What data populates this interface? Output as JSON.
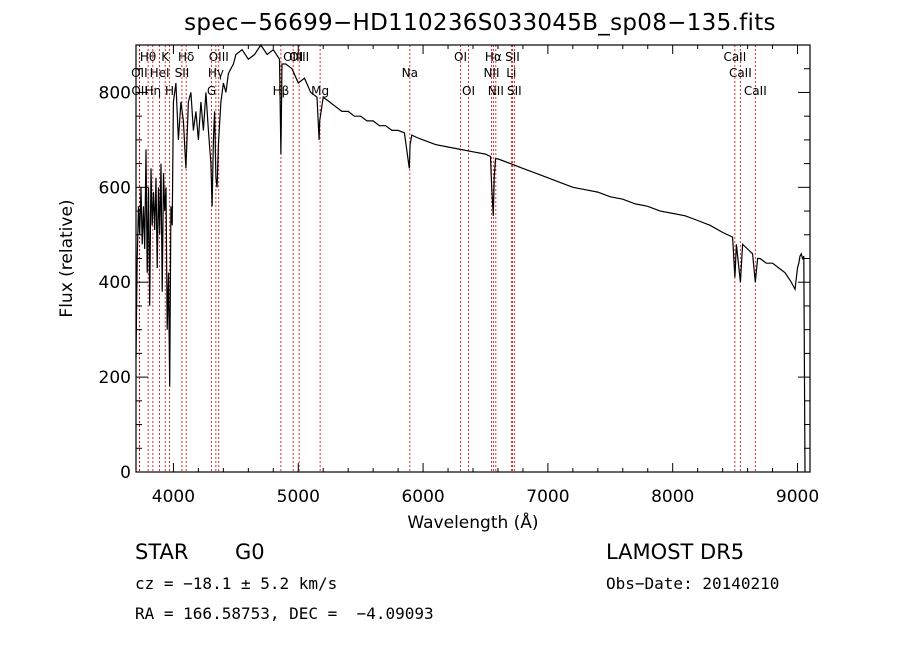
{
  "title": "spec−56699−HD110236S033045B_sp08−135.fits",
  "info": {
    "class_label": "STAR",
    "subclass": "G0",
    "cz": "cz = −18.1 ± 5.2 km/s",
    "radec": "RA = 166.58753, DEC =  −4.09093",
    "survey": "LAMOST DR5",
    "obs_date": "Obs−Date: 20140210"
  },
  "chart_data": {
    "type": "line",
    "title": "spec−56699−HD110236S033045B_sp08−135.fits",
    "xlabel": "Wavelength (Å)",
    "ylabel": "Flux (relative)",
    "xlim": [
      3700,
      9100
    ],
    "ylim": [
      0,
      900
    ],
    "xticks": [
      4000,
      5000,
      6000,
      7000,
      8000,
      9000
    ],
    "yticks": [
      0,
      200,
      400,
      600,
      800
    ],
    "grid": false,
    "line_color": "#000000",
    "marker_color": "#cc0000",
    "series": [
      {
        "x": [
          3700,
          3710,
          3720,
          3730,
          3740,
          3750,
          3760,
          3770,
          3780,
          3790,
          3800,
          3810,
          3820,
          3830,
          3840,
          3850,
          3860,
          3870,
          3880,
          3890,
          3900,
          3910,
          3920,
          3930,
          3940,
          3950,
          3960,
          3970,
          3980,
          3990,
          4000,
          4020,
          4040,
          4060,
          4080,
          4100,
          4120,
          4140,
          4160,
          4180,
          4200,
          4220,
          4240,
          4260,
          4280,
          4300,
          4310,
          4320,
          4330,
          4340,
          4350,
          4360,
          4380,
          4400,
          4420,
          4440,
          4460,
          4480,
          4500,
          4550,
          4600,
          4650,
          4700,
          4750,
          4800,
          4850,
          4861,
          4870,
          4900,
          4950,
          5000,
          5050,
          5100,
          5150,
          5167,
          5172,
          5183,
          5200,
          5250,
          5300,
          5350,
          5400,
          5450,
          5500,
          5550,
          5600,
          5650,
          5700,
          5750,
          5800,
          5850,
          5890,
          5896,
          5910,
          5950,
          6000,
          6100,
          6200,
          6300,
          6400,
          6500,
          6540,
          6550,
          6563,
          6570,
          6580,
          6600,
          6700,
          6800,
          6900,
          7000,
          7100,
          7200,
          7300,
          7400,
          7500,
          7600,
          7700,
          7800,
          7900,
          8000,
          8100,
          8200,
          8300,
          8400,
          8480,
          8498,
          8510,
          8542,
          8560,
          8600,
          8640,
          8662,
          8680,
          8700,
          8750,
          8800,
          8850,
          8900,
          8950,
          8980,
          9000,
          9010,
          9020,
          9030,
          9040,
          9050,
          9060
        ],
        "y": [
          240,
          450,
          560,
          500,
          600,
          480,
          560,
          470,
          680,
          420,
          600,
          350,
          640,
          520,
          590,
          510,
          620,
          430,
          600,
          500,
          650,
          380,
          630,
          550,
          600,
          300,
          420,
          180,
          560,
          520,
          780,
          820,
          700,
          780,
          740,
          640,
          780,
          800,
          720,
          760,
          700,
          780,
          720,
          800,
          720,
          650,
          560,
          700,
          760,
          620,
          600,
          690,
          780,
          820,
          800,
          840,
          850,
          860,
          880,
          890,
          870,
          880,
          900,
          880,
          890,
          870,
          670,
          860,
          860,
          850,
          820,
          830,
          800,
          790,
          700,
          740,
          760,
          790,
          780,
          770,
          760,
          760,
          750,
          750,
          740,
          740,
          730,
          730,
          720,
          720,
          715,
          640,
          690,
          710,
          705,
          700,
          690,
          685,
          680,
          675,
          670,
          665,
          600,
          540,
          620,
          660,
          660,
          650,
          640,
          630,
          620,
          610,
          600,
          595,
          590,
          580,
          575,
          565,
          560,
          550,
          545,
          540,
          530,
          520,
          505,
          495,
          410,
          480,
          400,
          480,
          470,
          460,
          400,
          450,
          450,
          440,
          440,
          430,
          420,
          400,
          385,
          430,
          440,
          455,
          460,
          450,
          455,
          0
        ]
      }
    ],
    "line_markers": [
      {
        "label": "Hθ",
        "x": 3797,
        "row": 0
      },
      {
        "label": "OII",
        "x": 3727,
        "row": 1
      },
      {
        "label": "OII",
        "x": 3729,
        "row": 2
      },
      {
        "label": "HeI",
        "x": 3889,
        "row": 1
      },
      {
        "label": "Hη",
        "x": 3835,
        "row": 2
      },
      {
        "label": "K",
        "x": 3934,
        "row": 0
      },
      {
        "label": "H",
        "x": 3969,
        "row": 2
      },
      {
        "label": "Hδ",
        "x": 4102,
        "row": 0
      },
      {
        "label": "SII",
        "x": 4068,
        "row": 1
      },
      {
        "label": "OIII",
        "x": 4363,
        "row": 0
      },
      {
        "label": "Hγ",
        "x": 4340,
        "row": 1
      },
      {
        "label": "G",
        "x": 4305,
        "row": 2
      },
      {
        "label": "Hβ",
        "x": 4861,
        "row": 2
      },
      {
        "label": "OIII",
        "x": 4959,
        "row": 0
      },
      {
        "label": "OIII",
        "x": 5007,
        "row": 0
      },
      {
        "label": "Mg",
        "x": 5175,
        "row": 2
      },
      {
        "label": "Na",
        "x": 5894,
        "row": 1
      },
      {
        "label": "OI",
        "x": 6300,
        "row": 0
      },
      {
        "label": "OI",
        "x": 6364,
        "row": 2
      },
      {
        "label": "NII",
        "x": 6548,
        "row": 1
      },
      {
        "label": "Hα",
        "x": 6563,
        "row": 0
      },
      {
        "label": "NII",
        "x": 6583,
        "row": 2
      },
      {
        "label": "Li",
        "x": 6707,
        "row": 1
      },
      {
        "label": "SII",
        "x": 6716,
        "row": 0
      },
      {
        "label": "SII",
        "x": 6731,
        "row": 2
      },
      {
        "label": "CaII",
        "x": 8498,
        "row": 0
      },
      {
        "label": "CaII",
        "x": 8542,
        "row": 1
      },
      {
        "label": "CaII",
        "x": 8662,
        "row": 2
      }
    ]
  }
}
